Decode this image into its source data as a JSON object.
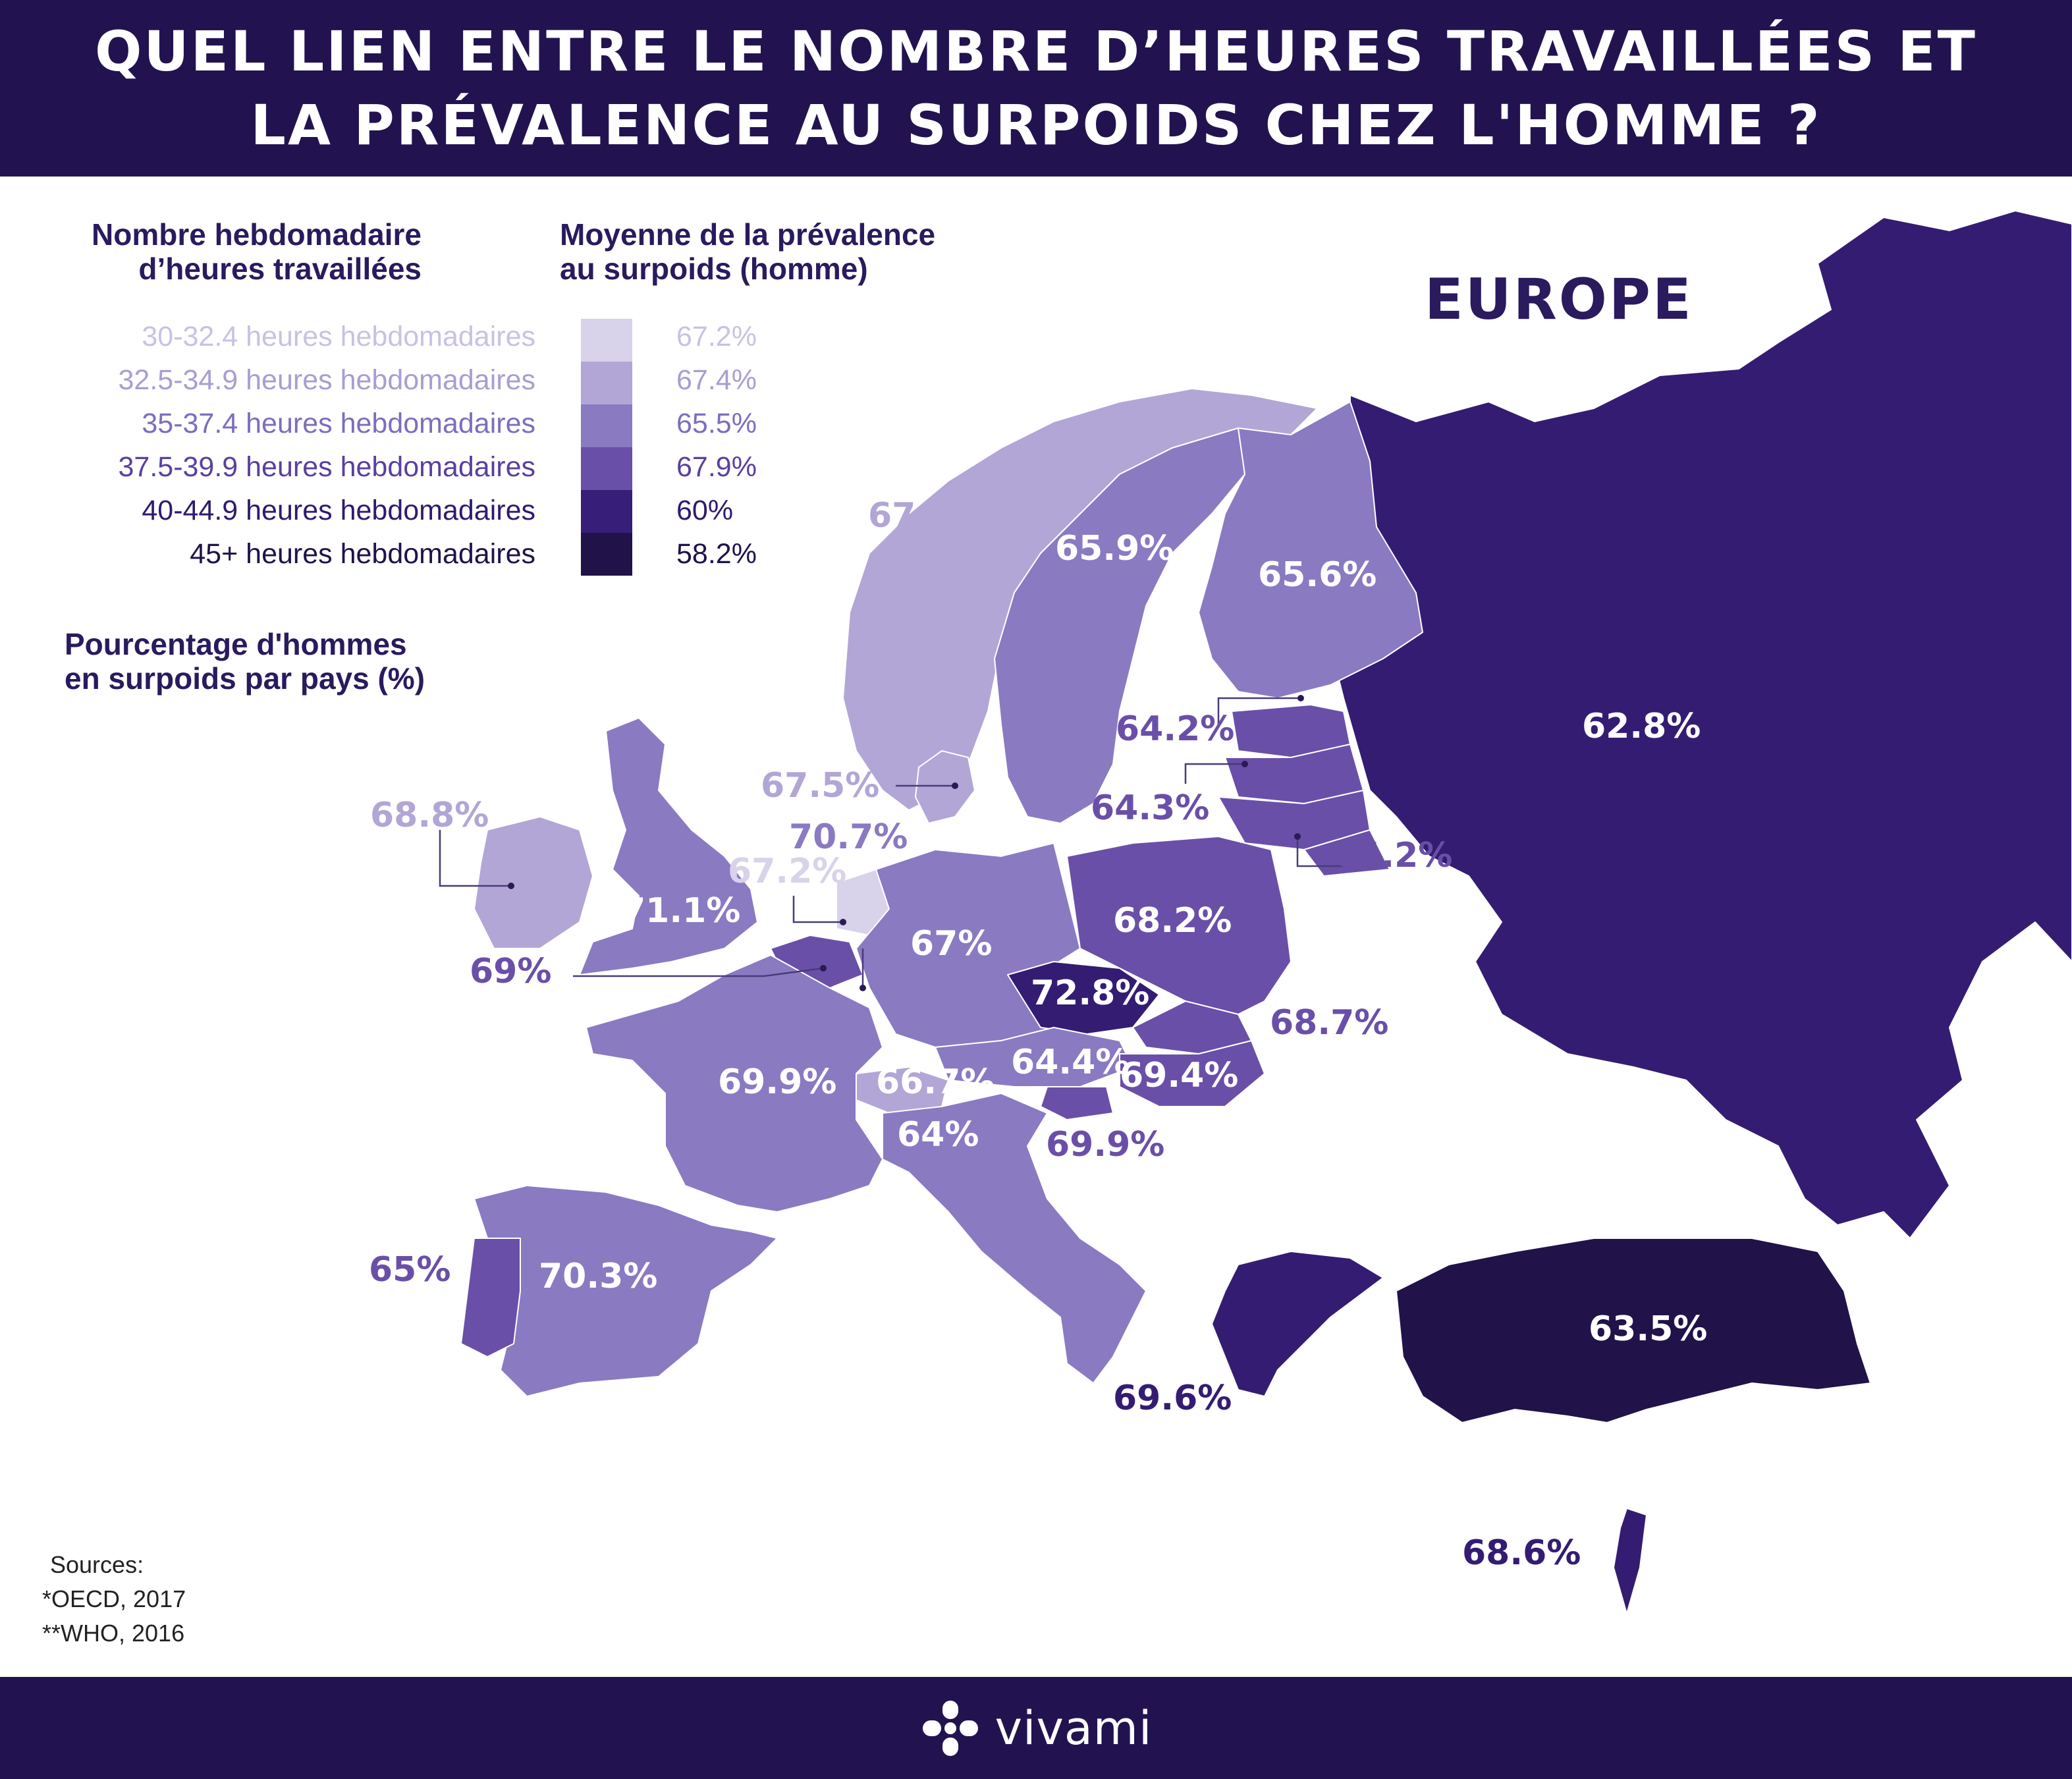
{
  "header": {
    "title_line1": "QUEL LIEN ENTRE LE NOMBRE D’HEURES TRAVAILLÉES ET",
    "title_line2": "LA PRÉVALENCE AU SURPOIDS CHEZ L'HOMME ?"
  },
  "map_title": "EUROPE",
  "legend": {
    "hours_title_line1": "Nombre hebdomadaire",
    "hours_title_line2": "d’heures travaillées",
    "prev_title_line1": "Moyenne de la prévalence",
    "prev_title_line2": "au surpoids (homme)",
    "items": [
      {
        "hours": "30-32.4 heures hebdomadaires",
        "prevalence": "67.2%",
        "color": "#d8d2ea",
        "text_color": "#c9c1e2"
      },
      {
        "hours": "32.5-34.9 heures hebdomadaires",
        "prevalence": "67.4%",
        "color": "#b2a6d6",
        "text_color": "#a99dd2"
      },
      {
        "hours": "35-37.4 heures hebdomadaires",
        "prevalence": "65.5%",
        "color": "#8a7ac2",
        "text_color": "#7d6dbd"
      },
      {
        "hours": "37.5-39.9 heures hebdomadaires",
        "prevalence": "67.9%",
        "color": "#6a4fa8",
        "text_color": "#5a3f9e"
      },
      {
        "hours": "40-44.9 heures hebdomadaires",
        "prevalence": "60%",
        "color": "#371e78",
        "text_color": "#2f1a6e"
      },
      {
        "hours": "45+ heures hebdomadaires",
        "prevalence": "58.2%",
        "color": "#21124a",
        "text_color": "#21124a"
      }
    ]
  },
  "pct_title_line1": "Pourcentage d'hommes",
  "pct_title_line2": "en surpoids par pays (%)",
  "countries": {
    "norway": "67.9%",
    "sweden": "65.9%",
    "finland": "65.6%",
    "russia": "62.8%",
    "estonia": "64.2%",
    "latvia": "64.3%",
    "lithuania": "64.2%",
    "denmark": "67.5%",
    "netherlands": "70.7%",
    "germany_small": "67.2%",
    "ireland": "68.8%",
    "uk": "71.1%",
    "belgium": "69%",
    "germany": "67%",
    "poland": "68.2%",
    "czechia": "72.8%",
    "slovakia": "68.7%",
    "austria": "64.4%",
    "hungary": "69.4%",
    "slovenia": "69.9%",
    "france": "69.9%",
    "switzerland": "66.7%",
    "italy": "64%",
    "portugal": "65%",
    "spain": "70.3%",
    "greece": "69.6%",
    "turkey": "63.5%",
    "israel": "68.6%"
  },
  "sources": {
    "heading": "Sources:",
    "line1": "*OECD, 2017",
    "line2": "**WHO, 2016"
  },
  "footer": {
    "brand": "vivami"
  }
}
